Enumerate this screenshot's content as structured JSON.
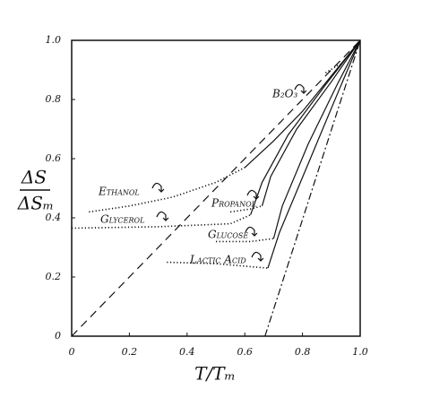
{
  "chart_data": {
    "type": "line",
    "xlabel": "T/Tₘ",
    "ylabel_top": "ΔS",
    "ylabel_bottom": "ΔSₘ",
    "xlim": [
      0,
      1.0
    ],
    "ylim": [
      0,
      1.0
    ],
    "xticks": [
      0,
      0.2,
      0.4,
      0.6,
      0.8,
      {
        "value": 1.0,
        "label": "1.0"
      }
    ],
    "yticks": [
      0,
      0.2,
      0.4,
      0.6,
      0.8,
      {
        "value": 1.0,
        "label": "1.0"
      }
    ],
    "color": "#111111",
    "series": [
      {
        "style": "dashed",
        "x": [
          0,
          1.0
        ],
        "values": [
          0,
          1.0
        ]
      },
      {
        "style": "dashdot",
        "x": [
          0.67,
          1.0
        ],
        "values": [
          0,
          1.0
        ]
      },
      {
        "name": "Ethanol",
        "style": "dotted",
        "x": [
          0.06,
          0.2,
          0.35,
          0.5,
          0.6
        ],
        "values": [
          0.42,
          0.44,
          0.47,
          0.52,
          0.57
        ]
      },
      {
        "style": "solid",
        "x": [
          0.6,
          0.7,
          0.8,
          0.9,
          1.0
        ],
        "values": [
          0.57,
          0.66,
          0.76,
          0.88,
          1.0
        ]
      },
      {
        "name": "Glycerol",
        "style": "dotted",
        "x": [
          0.0,
          0.3,
          0.55,
          0.62
        ],
        "values": [
          0.365,
          0.37,
          0.38,
          0.41
        ]
      },
      {
        "style": "solid",
        "x": [
          0.62,
          0.66,
          0.75,
          0.88,
          1.0
        ],
        "values": [
          0.41,
          0.52,
          0.68,
          0.85,
          1.0
        ]
      },
      {
        "name": "Propanol",
        "style": "dotted",
        "x": [
          0.55,
          0.62,
          0.66
        ],
        "values": [
          0.42,
          0.43,
          0.44
        ]
      },
      {
        "style": "solid",
        "x": [
          0.66,
          0.69,
          0.78,
          0.9,
          1.0
        ],
        "values": [
          0.44,
          0.54,
          0.7,
          0.86,
          1.0
        ]
      },
      {
        "name": "Glucose",
        "style": "dotted",
        "x": [
          0.5,
          0.62,
          0.7
        ],
        "values": [
          0.32,
          0.32,
          0.33
        ]
      },
      {
        "style": "solid",
        "x": [
          0.7,
          0.73,
          0.82,
          0.92,
          1.0
        ],
        "values": [
          0.33,
          0.44,
          0.65,
          0.85,
          1.0
        ]
      },
      {
        "name": "Lactic Acid",
        "style": "dotted",
        "x": [
          0.33,
          0.5,
          0.68
        ],
        "values": [
          0.25,
          0.245,
          0.23
        ]
      },
      {
        "style": "solid",
        "x": [
          0.68,
          0.72,
          0.84,
          0.93,
          1.0
        ],
        "values": [
          0.23,
          0.35,
          0.63,
          0.84,
          1.0
        ]
      },
      {
        "name": "B₂O₃",
        "style": "dotted",
        "x": [
          0.88,
          0.93
        ],
        "values": [
          0.89,
          0.92
        ]
      }
    ]
  }
}
